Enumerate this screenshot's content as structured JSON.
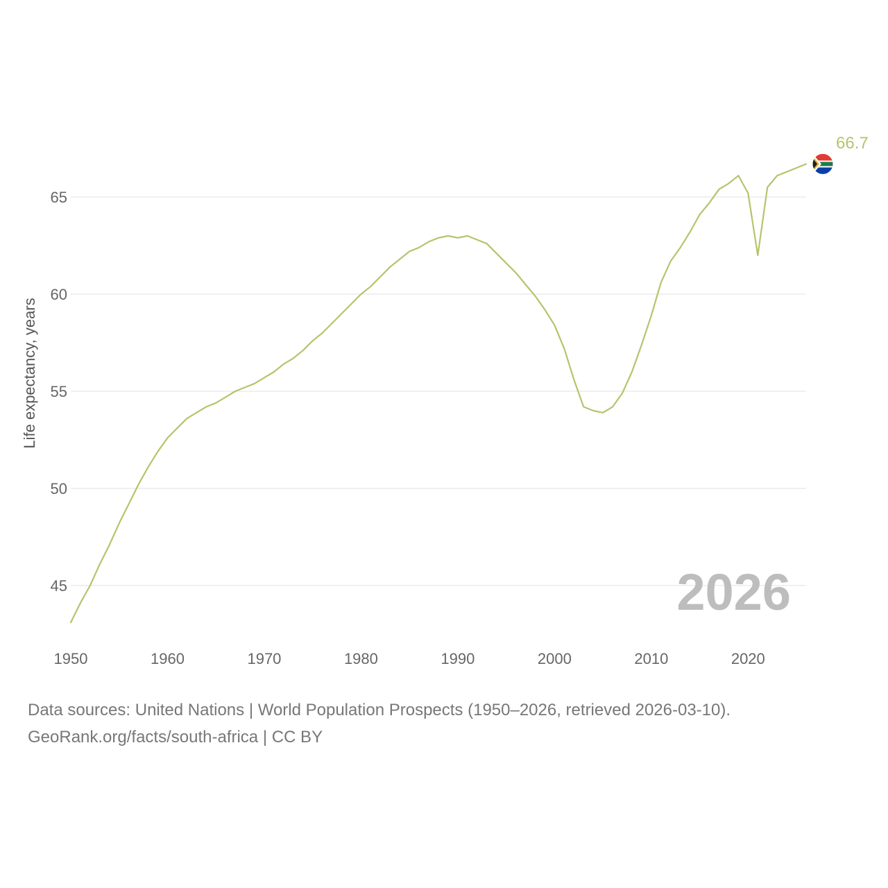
{
  "chart_data": {
    "type": "line",
    "ylabel": "Life expectancy, years",
    "xlim": [
      1950,
      2026
    ],
    "ylim": [
      42.5,
      68.5
    ],
    "x_ticks": [
      1950,
      1960,
      1970,
      1980,
      1990,
      2000,
      2010,
      2020
    ],
    "y_ticks": [
      45,
      50,
      55,
      60,
      65
    ],
    "grid": true,
    "year_marker": "2026",
    "end_label": "66.7",
    "series": [
      {
        "name": "South Africa",
        "color": "#b5c46b",
        "x": [
          1950,
          1951,
          1952,
          1953,
          1954,
          1955,
          1956,
          1957,
          1958,
          1959,
          1960,
          1961,
          1962,
          1963,
          1964,
          1965,
          1966,
          1967,
          1968,
          1969,
          1970,
          1971,
          1972,
          1973,
          1974,
          1975,
          1976,
          1977,
          1978,
          1979,
          1980,
          1981,
          1982,
          1983,
          1984,
          1985,
          1986,
          1987,
          1988,
          1989,
          1990,
          1991,
          1992,
          1993,
          1994,
          1995,
          1996,
          1997,
          1998,
          1999,
          2000,
          2001,
          2002,
          2003,
          2004,
          2005,
          2006,
          2007,
          2008,
          2009,
          2010,
          2011,
          2012,
          2013,
          2014,
          2015,
          2016,
          2017,
          2018,
          2019,
          2020,
          2021,
          2022,
          2023,
          2024,
          2025,
          2026
        ],
        "values": [
          43.1,
          44.1,
          45.0,
          46.1,
          47.1,
          48.2,
          49.2,
          50.2,
          51.1,
          51.9,
          52.6,
          53.1,
          53.6,
          53.9,
          54.2,
          54.4,
          54.7,
          55.0,
          55.2,
          55.4,
          55.7,
          56.0,
          56.4,
          56.7,
          57.1,
          57.6,
          58.0,
          58.5,
          59.0,
          59.5,
          60.0,
          60.4,
          60.9,
          61.4,
          61.8,
          62.2,
          62.4,
          62.7,
          62.9,
          63.0,
          62.9,
          63.0,
          62.8,
          62.6,
          62.1,
          61.6,
          61.1,
          60.5,
          59.9,
          59.2,
          58.4,
          57.2,
          55.6,
          54.2,
          54.0,
          53.9,
          54.2,
          54.9,
          56.0,
          57.4,
          58.9,
          60.6,
          61.7,
          62.4,
          63.2,
          64.1,
          64.7,
          65.4,
          65.7,
          66.1,
          65.2,
          62.0,
          65.5,
          66.1,
          66.3,
          66.5,
          66.7
        ]
      }
    ]
  },
  "footer": {
    "line1": "Data sources: United Nations | World Population Prospects (1950–2026, retrieved 2026-03-10).",
    "line2": "GeoRank.org/facts/south-africa | CC BY"
  },
  "flag": {
    "red": "#e03c31",
    "blue": "#0b3fa8",
    "green": "#1f7a4d",
    "black": "#222222",
    "gold": "#e6b53a",
    "white": "#ffffff"
  }
}
